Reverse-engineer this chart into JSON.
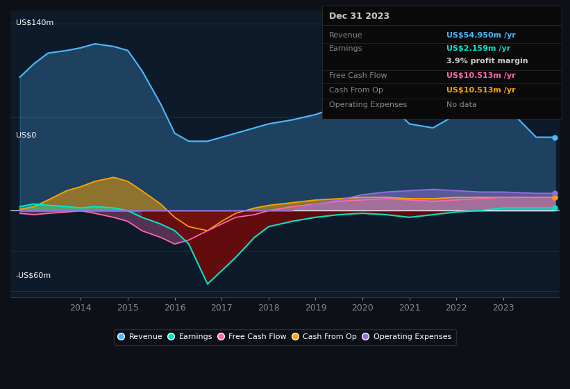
{
  "bg_color": "#0d1117",
  "plot_bg_color": "#0d1a2a",
  "ylabel_top": "US$140m",
  "ylabel_zero": "US$0",
  "ylabel_bottom": "-US$60m",
  "ylim": [
    -65,
    150
  ],
  "xlim": [
    2012.5,
    2024.2
  ],
  "x_ticks": [
    2014,
    2015,
    2016,
    2017,
    2018,
    2019,
    2020,
    2021,
    2022,
    2023
  ],
  "colors": {
    "revenue": "#4db8ff",
    "earnings": "#00e5c8",
    "free_cash_flow": "#ff69b4",
    "cash_from_op": "#ffa500",
    "operating_expenses": "#9370db"
  },
  "earnings_neg_fill": "#6b0a0a",
  "legend": [
    {
      "label": "Revenue",
      "color": "#4db8ff"
    },
    {
      "label": "Earnings",
      "color": "#00e5c8"
    },
    {
      "label": "Free Cash Flow",
      "color": "#ff69b4"
    },
    {
      "label": "Cash From Op",
      "color": "#ffa500"
    },
    {
      "label": "Operating Expenses",
      "color": "#9370db"
    }
  ],
  "infobox_bg": "#0a0a0a",
  "infobox_title": "Dec 31 2023",
  "infobox_rows": [
    {
      "label": "Revenue",
      "value": "US$54.950m /yr",
      "value_color": "#4db8ff",
      "label_color": "#888888"
    },
    {
      "label": "Earnings",
      "value": "US$2.159m /yr",
      "value_color": "#00e5c8",
      "label_color": "#888888"
    },
    {
      "label": "",
      "value": "3.9% profit margin",
      "value_color": "#cccccc",
      "label_color": "#888888"
    },
    {
      "label": "Free Cash Flow",
      "value": "US$10.513m /yr",
      "value_color": "#ff69b4",
      "label_color": "#888888"
    },
    {
      "label": "Cash From Op",
      "value": "US$10.513m /yr",
      "value_color": "#ffa500",
      "label_color": "#888888"
    },
    {
      "label": "Operating Expenses",
      "value": "No data",
      "value_color": "#888888",
      "label_color": "#888888"
    }
  ]
}
